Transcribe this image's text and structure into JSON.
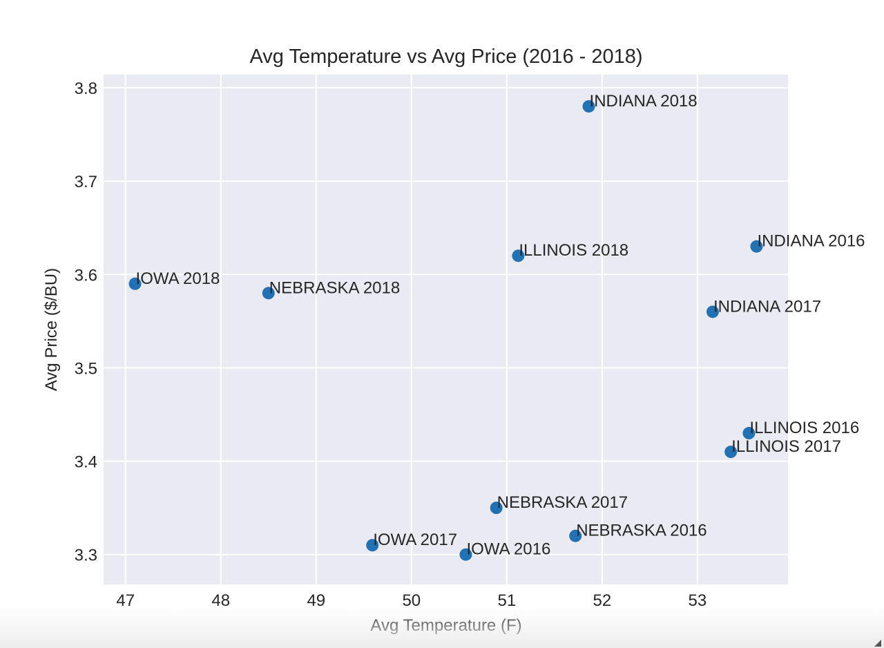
{
  "chart_data": {
    "type": "scatter",
    "title": "Avg Temperature vs Avg Price (2016 - 2018)",
    "xlabel": "Avg Temperature (F)",
    "ylabel": "Avg Price ($/BU)",
    "xlim": [
      46.77,
      53.95
    ],
    "ylim": [
      3.268,
      3.814
    ],
    "xticks": [
      "47",
      "48",
      "49",
      "50",
      "51",
      "52",
      "53"
    ],
    "yticks": [
      "3.3",
      "3.4",
      "3.5",
      "3.6",
      "3.7",
      "3.8"
    ],
    "grid": true,
    "background_color": "#eaeaf2",
    "grid_color": "#ffffff",
    "marker_color": "#2171b5",
    "points": [
      {
        "label": "INDIANA 2018",
        "x": 51.86,
        "y": 3.78
      },
      {
        "label": "INDIANA 2016",
        "x": 53.62,
        "y": 3.63
      },
      {
        "label": "ILLINOIS 2018",
        "x": 51.12,
        "y": 3.62
      },
      {
        "label": "IOWA 2018",
        "x": 47.1,
        "y": 3.59
      },
      {
        "label": "NEBRASKA 2018",
        "x": 48.5,
        "y": 3.58
      },
      {
        "label": "INDIANA 2017",
        "x": 53.16,
        "y": 3.56
      },
      {
        "label": "ILLINOIS 2016",
        "x": 53.54,
        "y": 3.43
      },
      {
        "label": "ILLINOIS 2017",
        "x": 53.35,
        "y": 3.41
      },
      {
        "label": "NEBRASKA 2017",
        "x": 50.89,
        "y": 3.35
      },
      {
        "label": "NEBRASKA 2016",
        "x": 51.72,
        "y": 3.32
      },
      {
        "label": "IOWA 2017",
        "x": 49.59,
        "y": 3.31
      },
      {
        "label": "IOWA 2016",
        "x": 50.57,
        "y": 3.3
      }
    ]
  }
}
